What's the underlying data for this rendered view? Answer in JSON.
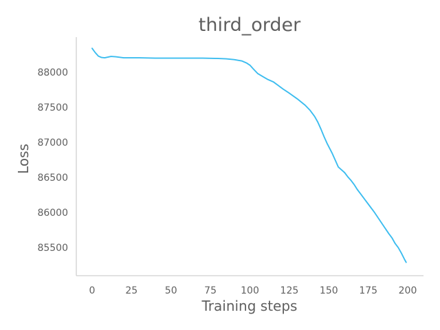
{
  "chart_data": {
    "type": "line",
    "title": "third_order",
    "xlabel": "Training steps",
    "ylabel": "Loss",
    "xlim": [
      -10,
      210
    ],
    "ylim": [
      85100,
      88500
    ],
    "xticks": [
      0,
      25,
      50,
      75,
      100,
      125,
      150,
      175,
      200
    ],
    "yticks": [
      85500,
      86000,
      86500,
      87000,
      87500,
      88000
    ],
    "grid": false,
    "legend": "none",
    "series": [
      {
        "color": "#3bbcef",
        "x": [
          0,
          2,
          4,
          6,
          8,
          10,
          12,
          15,
          20,
          25,
          30,
          40,
          50,
          60,
          70,
          80,
          85,
          90,
          95,
          98,
          100,
          102,
          105,
          108,
          111,
          115,
          118,
          121,
          125,
          130,
          135,
          138,
          141,
          143,
          145,
          147,
          149,
          152,
          154,
          156,
          158,
          160,
          162,
          164,
          166,
          168,
          170,
          173,
          176,
          179,
          182,
          185,
          188,
          190,
          192,
          194,
          196,
          198,
          199
        ],
        "values": [
          88340,
          88280,
          88230,
          88210,
          88205,
          88215,
          88225,
          88220,
          88205,
          88205,
          88205,
          88200,
          88200,
          88200,
          88200,
          88195,
          88190,
          88180,
          88160,
          88130,
          88100,
          88050,
          87980,
          87940,
          87900,
          87860,
          87810,
          87760,
          87700,
          87620,
          87530,
          87460,
          87370,
          87290,
          87190,
          87080,
          86980,
          86850,
          86750,
          86650,
          86610,
          86570,
          86510,
          86460,
          86400,
          86330,
          86270,
          86180,
          86090,
          86000,
          85900,
          85800,
          85700,
          85640,
          85560,
          85500,
          85420,
          85330,
          85290
        ]
      }
    ]
  }
}
